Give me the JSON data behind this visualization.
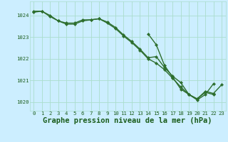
{
  "title": "Graphe pression niveau de la mer (hPa)",
  "bg_color": "#cceeff",
  "grid_color": "#aaddcc",
  "line_color": "#2d6e2d",
  "marker": "D",
  "markersize": 2.2,
  "linewidth": 1.0,
  "hours": [
    0,
    1,
    2,
    3,
    4,
    5,
    6,
    7,
    8,
    9,
    10,
    11,
    12,
    13,
    14,
    15,
    16,
    17,
    18,
    19,
    20,
    21,
    22,
    23
  ],
  "series1": [
    1024.2,
    1024.2,
    1024.0,
    1023.75,
    1023.65,
    1023.65,
    1023.8,
    1023.8,
    1023.85,
    1023.7,
    1023.45,
    1023.1,
    1022.8,
    1022.45,
    1022.05,
    1022.1,
    1021.6,
    1021.2,
    1020.9,
    1020.35,
    1020.1,
    1020.35,
    1020.85,
    null
  ],
  "series2": [
    1024.15,
    1024.2,
    1023.95,
    1023.75,
    1023.6,
    1023.6,
    1023.75,
    1023.8,
    1023.85,
    1023.65,
    1023.4,
    1023.05,
    1022.75,
    1022.4,
    1022.0,
    1021.8,
    1021.5,
    1021.1,
    1020.7,
    1020.35,
    1020.15,
    1020.45,
    1020.35,
    null
  ],
  "series3": [
    null,
    null,
    null,
    null,
    null,
    null,
    null,
    null,
    null,
    null,
    null,
    null,
    null,
    null,
    1023.15,
    1022.65,
    1021.7,
    1021.15,
    1020.6,
    1020.35,
    1020.15,
    1020.5,
    1020.4,
    1020.8
  ],
  "ylim": [
    1019.6,
    1024.65
  ],
  "yticks": [
    1020,
    1021,
    1022,
    1023,
    1024
  ],
  "label_color": "#1a5c1a",
  "title_fontsize": 7.5,
  "tick_fontsize": 5.2,
  "xlabel_fontsize": 5.2
}
